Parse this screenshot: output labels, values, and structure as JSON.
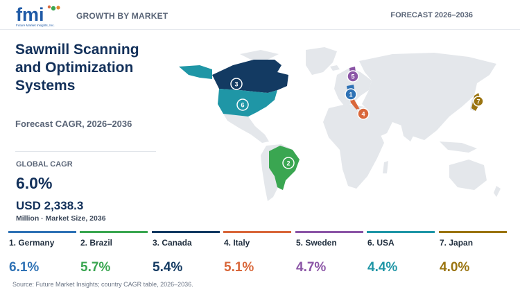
{
  "header": {
    "logo_text": "fmi",
    "logo_tagline": "Future Market Insights, Inc.",
    "left_label": "GROWTH BY MARKET",
    "right_label": "FORECAST 2026–2036"
  },
  "title": "Sawmill Scanning and Optimization Systems",
  "subtitle": "Forecast CAGR, 2026–2036",
  "global_cagr": {
    "label": "GLOBAL CAGR",
    "value": "6.0%"
  },
  "market_size": {
    "value": "USD 2,338.3",
    "label": "Million · Market Size, 2036"
  },
  "colors": {
    "land": "#e4e7eb",
    "germany": "#2f72b5",
    "brazil": "#3aa651",
    "canada": "#133a62",
    "italy": "#d9673a",
    "sweden": "#8b55a6",
    "usa": "#1f96a6",
    "japan": "#9a7410"
  },
  "map_markers": [
    {
      "rank": "1",
      "country": "Germany",
      "color": "#2f72b5"
    },
    {
      "rank": "2",
      "country": "Brazil",
      "color": "#3aa651"
    },
    {
      "rank": "3",
      "country": "Canada",
      "color": "#133a62"
    },
    {
      "rank": "4",
      "country": "Italy",
      "color": "#d9673a"
    },
    {
      "rank": "5",
      "country": "Sweden",
      "color": "#8b55a6"
    },
    {
      "rank": "6",
      "country": "USA",
      "color": "#1f96a6"
    },
    {
      "rank": "7",
      "country": "Japan",
      "color": "#9a7410"
    }
  ],
  "countries": [
    {
      "name": "1. Germany",
      "cagr": "6.1%",
      "color": "#2f72b5"
    },
    {
      "name": "2. Brazil",
      "cagr": "5.7%",
      "color": "#3aa651"
    },
    {
      "name": "3. Canada",
      "cagr": "5.4%",
      "color": "#133a62"
    },
    {
      "name": "4. Italy",
      "cagr": "5.1%",
      "color": "#d9673a"
    },
    {
      "name": "5. Sweden",
      "cagr": "4.7%",
      "color": "#8b55a6"
    },
    {
      "name": "6. USA",
      "cagr": "4.4%",
      "color": "#1f96a6"
    },
    {
      "name": "7. Japan",
      "cagr": "4.0%",
      "color": "#9a7410"
    }
  ],
  "source": "Source: Future Market Insights; country CAGR table, 2026–2036."
}
